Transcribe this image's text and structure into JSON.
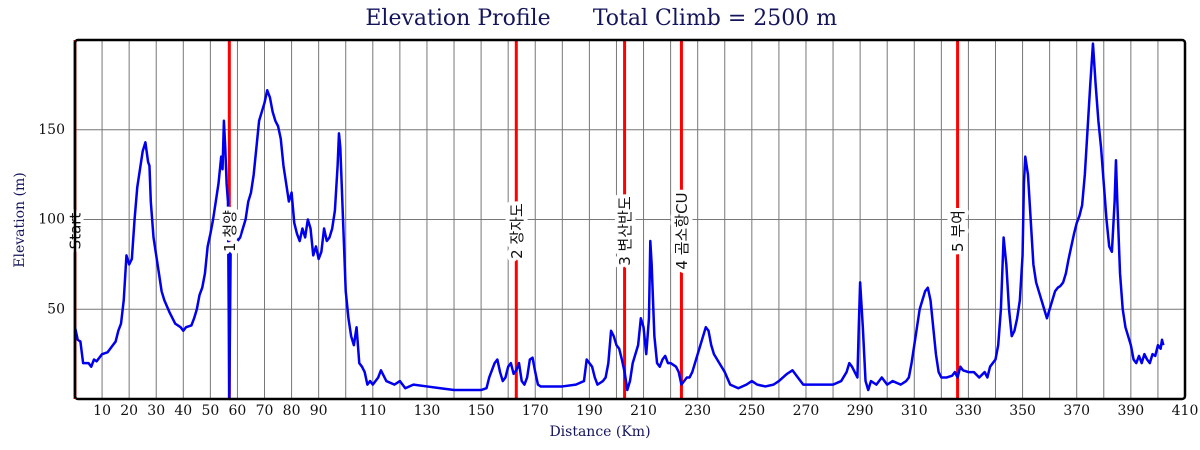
{
  "chart_data": {
    "type": "line",
    "title": "Elevation Profile",
    "subtitle": "Total Climb = 2500 m",
    "x_label": "Distance (Km)",
    "y_label": "Elevation (m)",
    "xlim": [
      0,
      410
    ],
    "ylim": [
      0,
      200
    ],
    "xticks": [
      10,
      20,
      30,
      40,
      50,
      60,
      70,
      80,
      90,
      110,
      130,
      150,
      170,
      190,
      210,
      230,
      250,
      270,
      290,
      310,
      330,
      350,
      370,
      390,
      410
    ],
    "xminor": [
      100,
      120,
      140,
      160,
      180,
      200,
      220,
      240,
      260,
      280,
      300,
      320,
      340,
      360,
      380,
      400
    ],
    "yticks": [
      50,
      100,
      150
    ],
    "grid": true,
    "color": "#0000ee",
    "marker_color": "#ff0000",
    "markers": [
      {
        "x": 0,
        "label": "Start"
      },
      {
        "x": 57,
        "label": "1 청양"
      },
      {
        "x": 163,
        "label": "2 장자도"
      },
      {
        "x": 203,
        "label": "3 변산반도"
      },
      {
        "x": 224,
        "label": "4 곰소항CU"
      },
      {
        "x": 326,
        "label": "5 부여"
      }
    ],
    "x": [
      0,
      1,
      2,
      3,
      5,
      6,
      7,
      8,
      10,
      12,
      13,
      14,
      15,
      16,
      17,
      18,
      19,
      20,
      21,
      22,
      23,
      24,
      25,
      26,
      27,
      27.5,
      28,
      29,
      30,
      31,
      32,
      33,
      35,
      37,
      39,
      40,
      41,
      43,
      44,
      45,
      46,
      47,
      48,
      49,
      50,
      51,
      52,
      53,
      54,
      54.5,
      55,
      55.5,
      56,
      56.5,
      57,
      57.5,
      58,
      59,
      60,
      61,
      62,
      63,
      64,
      65,
      66,
      67,
      68,
      69,
      70,
      71,
      72,
      73,
      74,
      75,
      76,
      77,
      78,
      79,
      80,
      81,
      82,
      83,
      84,
      85,
      86,
      87,
      88,
      89,
      90,
      91,
      92,
      93,
      94,
      95,
      96,
      97,
      97.5,
      98,
      99,
      100,
      101,
      102,
      103,
      104,
      105,
      106,
      107,
      108,
      109,
      110,
      112,
      113,
      115,
      118,
      120,
      122,
      125,
      130,
      135,
      140,
      145,
      150,
      152,
      153,
      155,
      156,
      157,
      158,
      159,
      160,
      161,
      162,
      163,
      164,
      165,
      166,
      167,
      168,
      169,
      170,
      171,
      172,
      175,
      180,
      185,
      188,
      189,
      190,
      191,
      192,
      193,
      195,
      196,
      197,
      198,
      199,
      200,
      201,
      202,
      203,
      204,
      205,
      206,
      207,
      208,
      209,
      210,
      211,
      212,
      212.5,
      213,
      214,
      215,
      216,
      217,
      218,
      219,
      220,
      222,
      223,
      224,
      225,
      226,
      227,
      228,
      229,
      230,
      232,
      233,
      234,
      235,
      236,
      238,
      240,
      242,
      245,
      248,
      250,
      252,
      255,
      258,
      260,
      263,
      265,
      267,
      269,
      275,
      280,
      283,
      285,
      286,
      287,
      288,
      289,
      289.5,
      290,
      291,
      292,
      293,
      294,
      296,
      298,
      300,
      302,
      305,
      307,
      308,
      309,
      310,
      311,
      312,
      313,
      314,
      315,
      316,
      317,
      318,
      319,
      320,
      322,
      324,
      325,
      326,
      327,
      328,
      330,
      332,
      334,
      336,
      337,
      338,
      340,
      341,
      342,
      343,
      344,
      345,
      346,
      347,
      348,
      349,
      350,
      350.5,
      351,
      352,
      353,
      354,
      355,
      356,
      357,
      358,
      359,
      360,
      361,
      362,
      363,
      364,
      365,
      366,
      367,
      368,
      369,
      370,
      371,
      372,
      373,
      374,
      375,
      376,
      377,
      378,
      379,
      380,
      381,
      382,
      383,
      384,
      384.5,
      385,
      386,
      387,
      388,
      389,
      390,
      391,
      392,
      393,
      394,
      395,
      396,
      397,
      398,
      399,
      400,
      401,
      401.5,
      402
    ],
    "values": [
      40,
      33,
      32,
      20,
      20,
      18,
      22,
      21,
      25,
      26,
      28,
      30,
      32,
      38,
      42,
      55,
      80,
      75,
      78,
      100,
      118,
      128,
      138,
      143,
      132,
      130,
      110,
      90,
      80,
      70,
      60,
      55,
      48,
      42,
      40,
      38,
      40,
      41,
      45,
      50,
      58,
      62,
      70,
      85,
      92,
      100,
      110,
      120,
      135,
      128,
      155,
      140,
      120,
      110,
      0,
      85,
      85,
      86,
      88,
      90,
      95,
      100,
      110,
      115,
      125,
      140,
      155,
      160,
      165,
      172,
      168,
      160,
      155,
      152,
      145,
      130,
      120,
      110,
      115,
      98,
      92,
      88,
      95,
      90,
      100,
      95,
      80,
      85,
      78,
      82,
      95,
      88,
      90,
      95,
      105,
      130,
      148,
      140,
      100,
      60,
      45,
      35,
      30,
      40,
      20,
      18,
      15,
      8,
      10,
      8,
      12,
      16,
      10,
      8,
      10,
      6,
      8,
      7,
      6,
      5,
      5,
      5,
      6,
      12,
      20,
      22,
      15,
      10,
      12,
      18,
      20,
      14,
      16,
      20,
      10,
      8,
      12,
      22,
      23,
      15,
      8,
      7,
      7,
      7,
      8,
      10,
      22,
      20,
      18,
      12,
      8,
      10,
      12,
      20,
      38,
      35,
      30,
      28,
      22,
      15,
      5,
      10,
      20,
      25,
      30,
      45,
      40,
      25,
      45,
      88,
      75,
      35,
      20,
      18,
      22,
      24,
      20,
      20,
      18,
      15,
      8,
      10,
      12,
      12,
      15,
      20,
      25,
      35,
      40,
      38,
      30,
      25,
      20,
      15,
      8,
      6,
      8,
      10,
      8,
      7,
      8,
      10,
      14,
      16,
      12,
      8,
      8,
      8,
      10,
      15,
      20,
      18,
      15,
      12,
      40,
      65,
      40,
      10,
      5,
      10,
      8,
      12,
      8,
      10,
      8,
      10,
      12,
      20,
      30,
      40,
      50,
      55,
      60,
      62,
      55,
      40,
      25,
      15,
      12,
      12,
      13,
      15,
      12,
      18,
      16,
      15,
      15,
      12,
      15,
      12,
      18,
      22,
      30,
      50,
      90,
      75,
      50,
      35,
      38,
      45,
      55,
      80,
      120,
      135,
      125,
      100,
      75,
      65,
      60,
      55,
      50,
      45,
      50,
      55,
      60,
      62,
      63,
      65,
      70,
      78,
      85,
      92,
      98,
      102,
      108,
      125,
      150,
      175,
      198,
      175,
      155,
      140,
      120,
      100,
      85,
      82,
      110,
      133,
      110,
      70,
      50,
      40,
      35,
      30,
      22,
      20,
      24,
      20,
      25,
      22,
      20,
      25,
      24,
      30,
      28,
      33,
      30
    ]
  }
}
